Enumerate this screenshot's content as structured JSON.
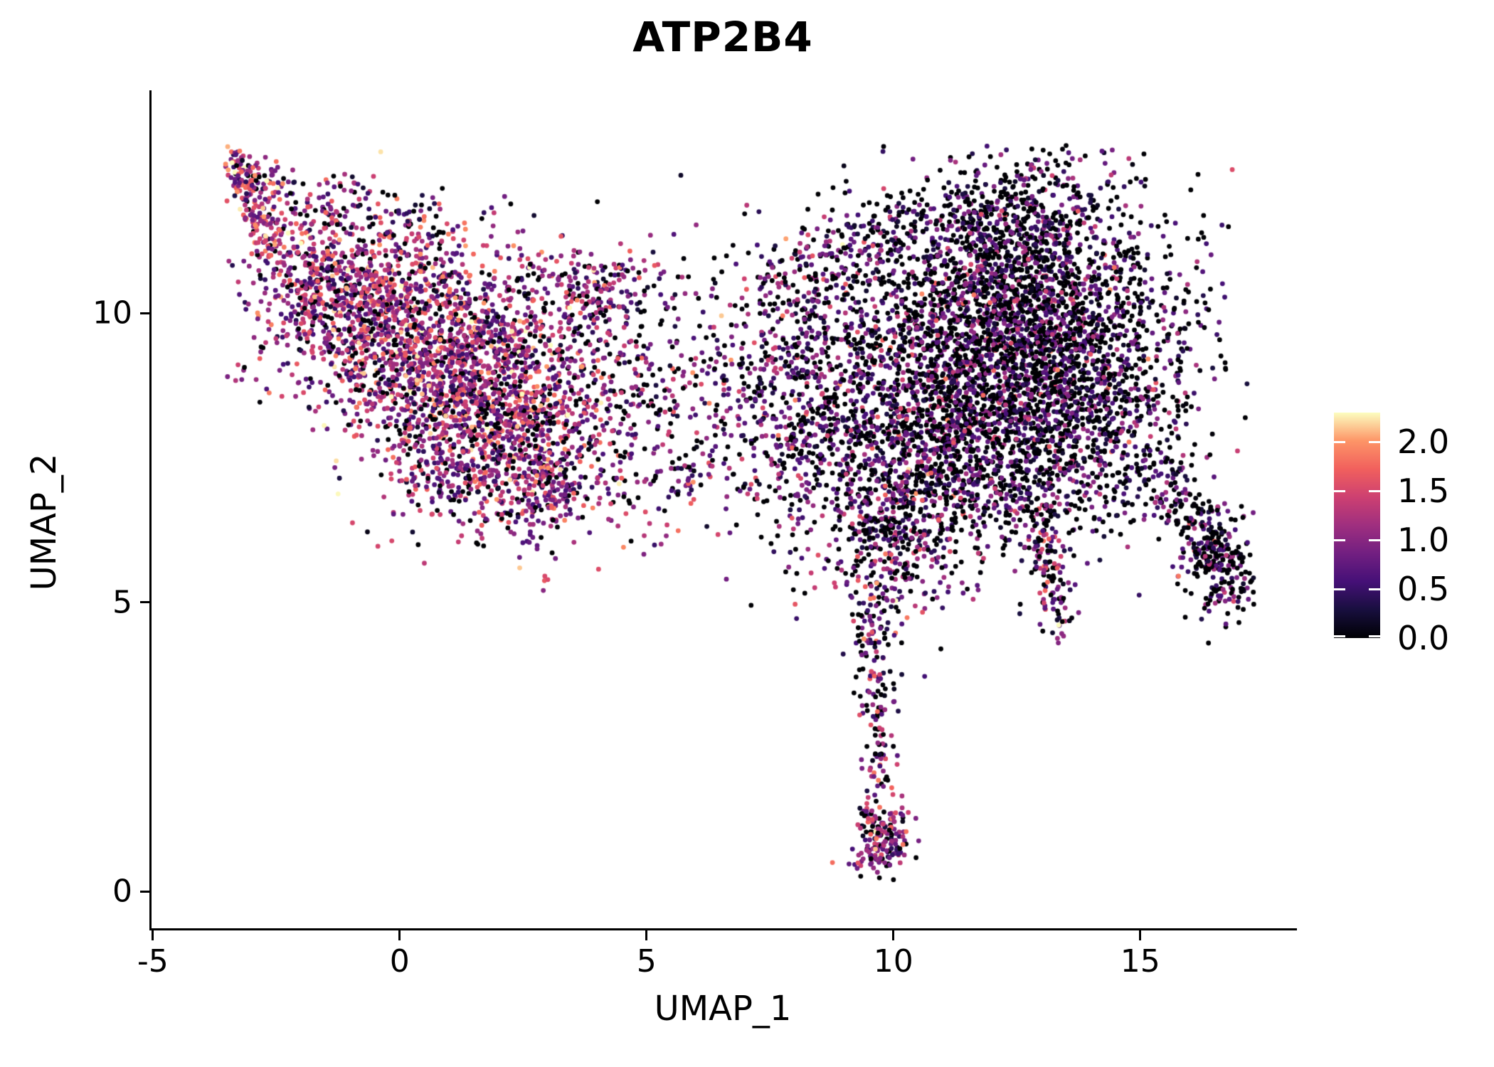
{
  "title": "ATP2B4",
  "axes": {
    "x": {
      "label": "UMAP_1",
      "lim": [
        -5.04,
        18.13
      ],
      "ticks": [
        {
          "value": -5,
          "label": "-5"
        },
        {
          "value": 0,
          "label": "0"
        },
        {
          "value": 5,
          "label": "5"
        },
        {
          "value": 10,
          "label": "10"
        },
        {
          "value": 15,
          "label": "15"
        }
      ]
    },
    "y": {
      "label": "UMAP_2",
      "lim": [
        -0.65,
        13.85
      ],
      "ticks": [
        {
          "value": 0,
          "label": "0"
        },
        {
          "value": 5,
          "label": "5"
        },
        {
          "value": 10,
          "label": "10"
        }
      ]
    }
  },
  "legend": {
    "vmin": 0.0,
    "vmax": 2.3,
    "ticks": [
      {
        "value": 2.0,
        "label": "2.0"
      },
      {
        "value": 1.5,
        "label": "1.5"
      },
      {
        "value": 1.0,
        "label": "1.0"
      },
      {
        "value": 0.5,
        "label": "0.5"
      },
      {
        "value": 0.0,
        "label": "0.0"
      }
    ]
  },
  "chart_data": {
    "type": "scatter",
    "title": "ATP2B4",
    "xlabel": "UMAP_1",
    "ylabel": "UMAP_2",
    "xlim": [
      -5.04,
      18.13
    ],
    "ylim": [
      -0.65,
      13.85
    ],
    "grid": false,
    "legend_position": "right",
    "point_radius_px": 3.4,
    "colormap_name": "magma",
    "colormap_stops": [
      "#000004",
      "#180f3e",
      "#451077",
      "#721f81",
      "#9f2f7f",
      "#cd4071",
      "#f1605d",
      "#fd9567",
      "#fcfdbf"
    ],
    "value_range": [
      0.0,
      2.3
    ],
    "data_bounds": {
      "x": [
        -3.55,
        17.35
      ],
      "y": [
        0.15,
        12.9
      ]
    },
    "seed": 42,
    "clusters": [
      {
        "id": "tip-trail",
        "type": "line",
        "a": [
          -3.38,
          12.78
        ],
        "b": [
          -2.55,
          11.05
        ],
        "jitter": 0.17,
        "n": 170,
        "expr": {
          "p0": 0.1,
          "mean": 1.25,
          "sd": 0.5
        }
      },
      {
        "id": "tip-side",
        "type": "line",
        "a": [
          -3.05,
          12.35
        ],
        "b": [
          -1.35,
          11.7
        ],
        "jitter": 0.22,
        "n": 80,
        "expr": {
          "p0": 0.18,
          "mean": 1.0,
          "sd": 0.5
        }
      },
      {
        "id": "top-arm",
        "type": "line",
        "a": [
          -1.1,
          11.95
        ],
        "b": [
          0.9,
          11.35
        ],
        "jitter": 0.28,
        "n": 60,
        "expr": {
          "p0": 0.22,
          "mean": 0.9,
          "sd": 0.5
        }
      },
      {
        "id": "left-upper",
        "type": "gauss",
        "c": [
          -1.55,
          10.55
        ],
        "sd": [
          0.75,
          0.6
        ],
        "rot": -25,
        "n": 380,
        "expr": {
          "p0": 0.12,
          "mean": 1.15,
          "sd": 0.5
        }
      },
      {
        "id": "left-main",
        "type": "gauss",
        "c": [
          0.75,
          9.45
        ],
        "sd": [
          1.55,
          0.95
        ],
        "rot": -18,
        "n": 2000,
        "expr": {
          "p0": 0.13,
          "mean": 1.1,
          "sd": 0.52
        }
      },
      {
        "id": "left-lower",
        "type": "gauss",
        "c": [
          1.9,
          7.7
        ],
        "sd": [
          1.15,
          0.8
        ],
        "rot": -12,
        "n": 780,
        "expr": {
          "p0": 0.15,
          "mean": 1.05,
          "sd": 0.5
        }
      },
      {
        "id": "left-bump",
        "type": "gauss",
        "c": [
          3.9,
          10.45
        ],
        "sd": [
          0.6,
          0.38
        ],
        "rot": 0,
        "n": 160,
        "expr": {
          "p0": 0.15,
          "mean": 1.0,
          "sd": 0.5
        }
      },
      {
        "id": "left-east",
        "type": "gauss",
        "c": [
          3.7,
          8.7
        ],
        "sd": [
          0.95,
          0.95
        ],
        "rot": 0,
        "n": 240,
        "expr": {
          "p0": 0.2,
          "mean": 0.95,
          "sd": 0.5
        }
      },
      {
        "id": "left-tail",
        "type": "gauss",
        "c": [
          3.1,
          6.85
        ],
        "sd": [
          0.45,
          0.35
        ],
        "rot": 0,
        "n": 90,
        "expr": {
          "p0": 0.2,
          "mean": 0.9,
          "sd": 0.5
        }
      },
      {
        "id": "bridge",
        "type": "gauss",
        "c": [
          5.9,
          8.8
        ],
        "sd": [
          1.15,
          1.05
        ],
        "rot": 0,
        "n": 160,
        "expr": {
          "p0": 0.3,
          "mean": 0.8,
          "sd": 0.5
        }
      },
      {
        "id": "bridge-low",
        "type": "gauss",
        "c": [
          5.6,
          7.0
        ],
        "sd": [
          0.5,
          0.35
        ],
        "rot": 0,
        "n": 50,
        "expr": {
          "p0": 0.25,
          "mean": 0.95,
          "sd": 0.55
        }
      },
      {
        "id": "central",
        "type": "gauss",
        "c": [
          8.6,
          8.3
        ],
        "sd": [
          1.05,
          1.25
        ],
        "rot": 0,
        "n": 900,
        "expr": {
          "p0": 0.32,
          "mean": 0.75,
          "sd": 0.5
        }
      },
      {
        "id": "central-top",
        "type": "line",
        "a": [
          7.3,
          10.3
        ],
        "b": [
          9.7,
          11.4
        ],
        "jitter": 0.45,
        "n": 150,
        "expr": {
          "p0": 0.35,
          "mean": 0.7,
          "sd": 0.5
        }
      },
      {
        "id": "right-main",
        "type": "gauss",
        "c": [
          12.7,
          9.35
        ],
        "sd": [
          1.6,
          1.35
        ],
        "rot": 0,
        "n": 3400,
        "expr": {
          "p0": 0.4,
          "mean": 0.62,
          "sd": 0.46
        }
      },
      {
        "id": "right-top",
        "type": "gauss",
        "c": [
          12.1,
          11.5
        ],
        "sd": [
          1.35,
          0.6
        ],
        "rot": 8,
        "n": 520,
        "expr": {
          "p0": 0.42,
          "mean": 0.6,
          "sd": 0.45
        }
      },
      {
        "id": "right-west",
        "type": "gauss",
        "c": [
          10.9,
          8.2
        ],
        "sd": [
          0.6,
          1.3
        ],
        "rot": 0,
        "n": 380,
        "expr": {
          "p0": 0.36,
          "mean": 0.68,
          "sd": 0.48
        }
      },
      {
        "id": "right-south",
        "type": "gauss",
        "c": [
          12.4,
          7.1
        ],
        "sd": [
          1.3,
          0.55
        ],
        "rot": 0,
        "n": 320,
        "expr": {
          "p0": 0.4,
          "mean": 0.62,
          "sd": 0.46
        }
      },
      {
        "id": "right-arm",
        "type": "line",
        "a": [
          15.15,
          7.35
        ],
        "b": [
          16.55,
          5.95
        ],
        "jitter": 0.27,
        "n": 150,
        "expr": {
          "p0": 0.45,
          "mean": 0.55,
          "sd": 0.48
        }
      },
      {
        "id": "arm-blob",
        "type": "gauss",
        "c": [
          16.6,
          5.6
        ],
        "sd": [
          0.38,
          0.45
        ],
        "rot": 30,
        "n": 210,
        "expr": {
          "p0": 0.45,
          "mean": 0.6,
          "sd": 0.5
        }
      },
      {
        "id": "right-spike",
        "type": "line",
        "a": [
          13.0,
          6.45
        ],
        "b": [
          13.35,
          4.5
        ],
        "jitter": 0.2,
        "n": 120,
        "expr": {
          "p0": 0.28,
          "mean": 0.85,
          "sd": 0.55
        }
      },
      {
        "id": "plume-top",
        "type": "gauss",
        "c": [
          9.8,
          6.3
        ],
        "sd": [
          0.5,
          0.9
        ],
        "rot": 0,
        "n": 320,
        "expr": {
          "p0": 0.28,
          "mean": 0.8,
          "sd": 0.5
        }
      },
      {
        "id": "plume-neck",
        "type": "line",
        "a": [
          9.55,
          4.95
        ],
        "b": [
          9.75,
          1.75
        ],
        "jitter": 0.16,
        "n": 140,
        "expr": {
          "p0": 0.25,
          "mean": 0.85,
          "sd": 0.55
        }
      },
      {
        "id": "plume-blob",
        "type": "gauss",
        "c": [
          9.75,
          0.9
        ],
        "sd": [
          0.3,
          0.34
        ],
        "rot": 0,
        "n": 190,
        "expr": {
          "p0": 0.2,
          "mean": 1.0,
          "sd": 0.5
        }
      },
      {
        "id": "gap-sparse",
        "type": "gauss",
        "c": [
          10.6,
          6.1
        ],
        "sd": [
          0.55,
          0.75
        ],
        "rot": 0,
        "n": 90,
        "expr": {
          "p0": 0.35,
          "mean": 0.7,
          "sd": 0.5
        }
      },
      {
        "id": "field-sparse",
        "type": "gauss",
        "c": [
          6.8,
          9.2
        ],
        "sd": [
          3.2,
          1.5
        ],
        "rot": 0,
        "n": 130,
        "expr": {
          "p0": 0.3,
          "mean": 0.8,
          "sd": 0.5
        }
      }
    ]
  }
}
